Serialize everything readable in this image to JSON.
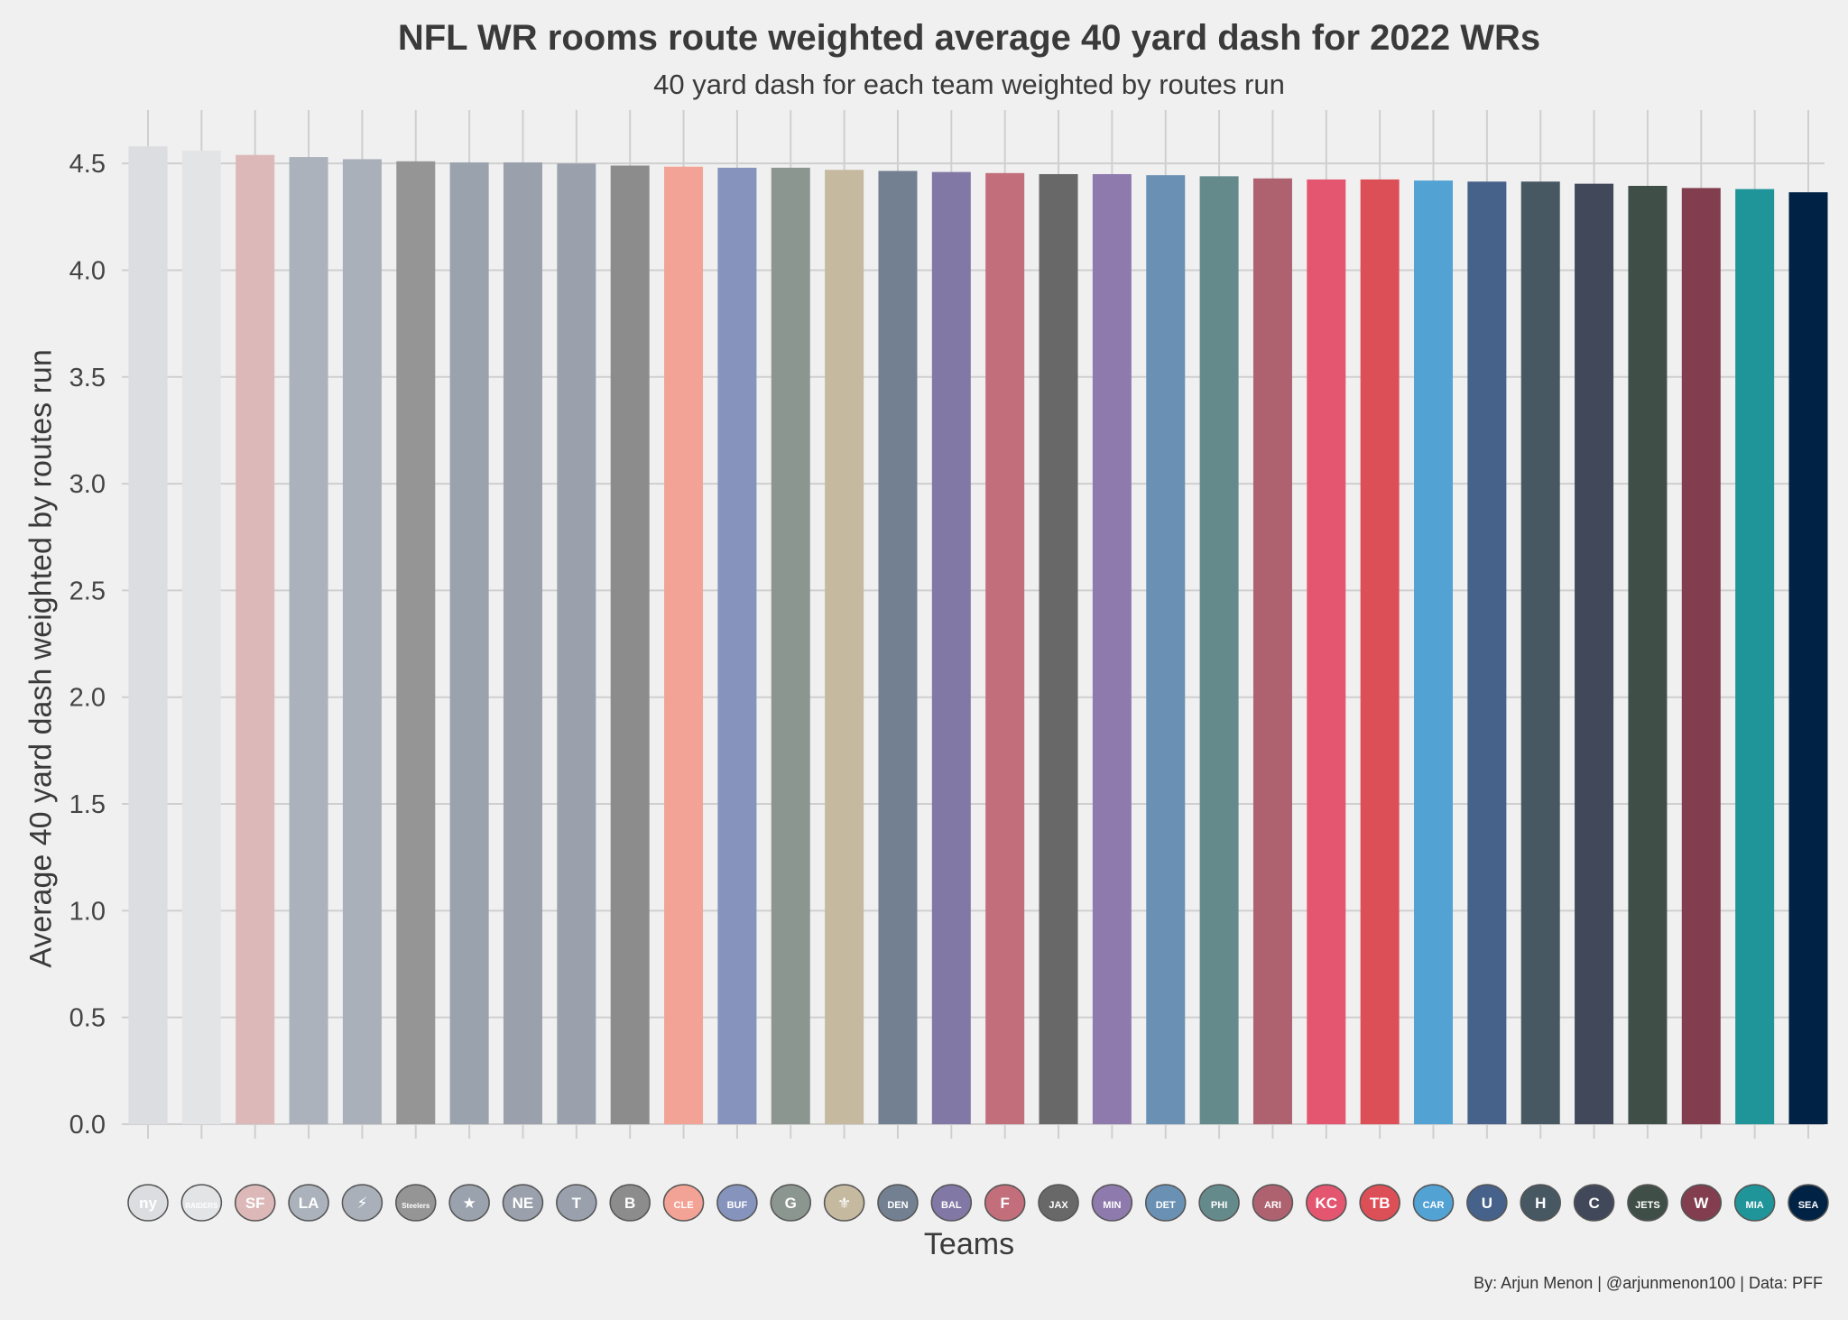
{
  "chart_data": {
    "type": "bar",
    "title": "NFL WR rooms route weighted average 40 yard dash for 2022 WRs",
    "subtitle": "40 yard dash for each team weighted by routes run",
    "xlabel": "Teams",
    "ylabel": "Average 40 yard dash weighted by routes run",
    "caption": "By: Arjun Menon | @arjunmenon100 | Data: PFF",
    "ylim": [
      0,
      4.75
    ],
    "yticks": [
      "0.0",
      "0.5",
      "1.0",
      "1.5",
      "2.0",
      "2.5",
      "3.0",
      "3.5",
      "4.0",
      "4.5"
    ],
    "grid": true,
    "categories": [
      "NYG",
      "LV",
      "SF",
      "LAR",
      "LAC",
      "PIT",
      "DAL",
      "NE",
      "TEN",
      "CIN",
      "CLE",
      "BUF",
      "GB",
      "NO",
      "DEN",
      "BAL",
      "ATL",
      "JAX",
      "MIN",
      "DET",
      "PHI",
      "ARI",
      "KC",
      "TB",
      "CAR",
      "IND",
      "HOU",
      "CHI",
      "NYJ",
      "WAS",
      "MIA",
      "SEA"
    ],
    "values": [
      4.58,
      4.56,
      4.54,
      4.53,
      4.52,
      4.51,
      4.505,
      4.505,
      4.5,
      4.49,
      4.485,
      4.48,
      4.48,
      4.47,
      4.465,
      4.46,
      4.455,
      4.45,
      4.45,
      4.445,
      4.44,
      4.43,
      4.425,
      4.425,
      4.42,
      4.415,
      4.415,
      4.405,
      4.395,
      4.385,
      4.38,
      4.365
    ],
    "colors": [
      "#dcdde1",
      "#e3e4e6",
      "#ddb8b8",
      "#abb2bc",
      "#aab0ba",
      "#959595",
      "#9aa2ae",
      "#9aa0ac",
      "#9aa1ad",
      "#8c8c8c",
      "#f3a395",
      "#8593bd",
      "#8b9690",
      "#c5b9a0",
      "#738091",
      "#8278a6",
      "#c36e7b",
      "#686868",
      "#8e7aad",
      "#6a91b4",
      "#648a8c",
      "#ae6270",
      "#e4566f",
      "#dd4f56",
      "#53a2d4",
      "#46628a",
      "#475862",
      "#40485a",
      "#3f4f48",
      "#823e4f",
      "#1f9499",
      "#002244"
    ],
    "logos": [
      "ny",
      "RAIDERS",
      "SF",
      "LA",
      "⚡",
      "Steelers",
      "★",
      "NE",
      "T",
      "B",
      "CLE",
      "BUF",
      "G",
      "⚜",
      "DEN",
      "BAL",
      "F",
      "JAX",
      "MIN",
      "DET",
      "PHI",
      "ARI",
      "KC",
      "TB",
      "CAR",
      "U",
      "H",
      "C",
      "JETS",
      "W",
      "MIA",
      "SEA"
    ]
  }
}
